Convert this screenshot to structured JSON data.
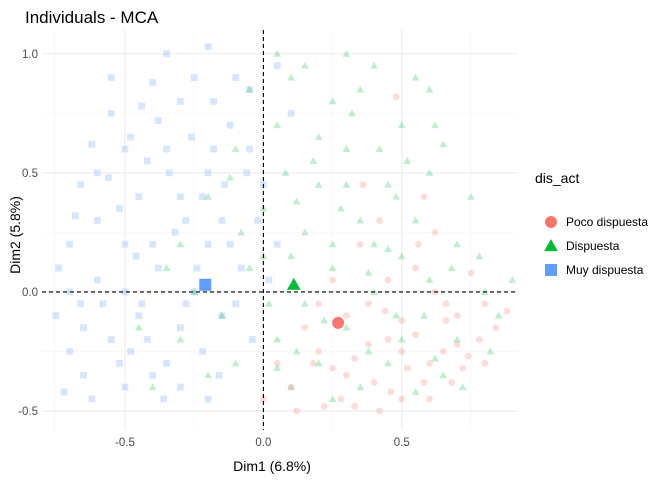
{
  "chart_data": {
    "type": "scatter",
    "title": "Individuals - MCA",
    "xlabel": "Dim1 (6.8%)",
    "ylabel": "Dim2 (5.8%)",
    "xlim": [
      -0.8,
      0.92
    ],
    "ylim": [
      -0.58,
      1.1
    ],
    "x_ticks": [
      -0.5,
      0.0,
      0.5
    ],
    "x_tick_labels": [
      "-0.5",
      "0.0",
      "0.5"
    ],
    "y_ticks": [
      -0.5,
      0.0,
      0.5,
      1.0
    ],
    "y_tick_labels": [
      "-0.5",
      "0.0",
      "0.5",
      "1.0"
    ],
    "reference_lines": {
      "x": 0,
      "y": 0,
      "style": "dashed"
    },
    "grid": true,
    "legend": {
      "title": "dis_act",
      "placement": "right",
      "entries": [
        "Poco dispuesta",
        "Dispuesta",
        "Muy dispuesta"
      ]
    },
    "colors": {
      "Poco dispuesta": "#F8766D",
      "Dispuesta": "#00BA38",
      "Muy dispuesta": "#619CFF"
    },
    "series": [
      {
        "name": "Poco dispuesta",
        "marker": "circle",
        "centroid": [
          0.27,
          -0.13
        ],
        "points": [
          [
            0.45,
            -0.2
          ],
          [
            0.6,
            -0.3
          ],
          [
            0.3,
            -0.35
          ],
          [
            0.7,
            -0.1
          ],
          [
            0.5,
            -0.45
          ],
          [
            0.2,
            -0.25
          ],
          [
            0.38,
            -0.05
          ],
          [
            0.55,
            0.1
          ],
          [
            0.65,
            -0.25
          ],
          [
            0.1,
            -0.4
          ],
          [
            0.8,
            -0.05
          ],
          [
            0.42,
            -0.5
          ],
          [
            0.25,
            0.05
          ],
          [
            0.72,
            -0.32
          ],
          [
            0.58,
            0.4
          ],
          [
            0.48,
            0.82
          ],
          [
            0.33,
            -0.28
          ],
          [
            0.15,
            -0.15
          ],
          [
            0.62,
            0.0
          ],
          [
            0.5,
            -0.12
          ],
          [
            0.78,
            -0.2
          ],
          [
            0.4,
            -0.38
          ],
          [
            0.28,
            -0.45
          ],
          [
            0.68,
            -0.38
          ],
          [
            0.88,
            -0.08
          ],
          [
            0.05,
            -0.3
          ],
          [
            0.35,
            0.2
          ],
          [
            0.52,
            -0.32
          ],
          [
            0.45,
            0.05
          ],
          [
            0.22,
            -0.48
          ],
          [
            0.6,
            -0.45
          ],
          [
            0.75,
            0.08
          ],
          [
            0.38,
            -0.22
          ],
          [
            0.3,
            -0.1
          ],
          [
            0.55,
            -0.18
          ],
          [
            0.12,
            -0.5
          ],
          [
            0.66,
            -0.12
          ],
          [
            0.46,
            -0.42
          ],
          [
            0.8,
            -0.3
          ],
          [
            0.2,
            -0.05
          ],
          [
            0.56,
            0.2
          ],
          [
            0.42,
            0.3
          ],
          [
            0.62,
            0.25
          ],
          [
            0.36,
            0.45
          ],
          [
            0.7,
            -0.22
          ],
          [
            0.25,
            -0.32
          ],
          [
            0.5,
            -0.25
          ],
          [
            0.84,
            -0.15
          ],
          [
            0.0,
            -0.45
          ],
          [
            0.58,
            -0.38
          ],
          [
            0.44,
            -0.08
          ],
          [
            0.33,
            -0.48
          ],
          [
            0.66,
            -0.05
          ],
          [
            0.18,
            -0.3
          ],
          [
            0.74,
            -0.27
          ]
        ]
      },
      {
        "name": "Dispuesta",
        "marker": "triangle",
        "centroid": [
          0.11,
          0.03
        ],
        "points": [
          [
            0.1,
            0.9
          ],
          [
            0.25,
            0.8
          ],
          [
            0.4,
            0.95
          ],
          [
            0.05,
            0.7
          ],
          [
            0.3,
            0.6
          ],
          [
            0.5,
            0.7
          ],
          [
            0.2,
            0.45
          ],
          [
            0.45,
            0.45
          ],
          [
            0.6,
            0.5
          ],
          [
            -0.1,
            0.6
          ],
          [
            0.35,
            0.3
          ],
          [
            0.15,
            0.25
          ],
          [
            0.55,
            0.3
          ],
          [
            0.7,
            0.2
          ],
          [
            0.0,
            0.35
          ],
          [
            -0.2,
            0.4
          ],
          [
            0.25,
            0.1
          ],
          [
            0.4,
            0.0
          ],
          [
            0.6,
            0.05
          ],
          [
            0.8,
            0.0
          ],
          [
            -0.05,
            0.1
          ],
          [
            0.15,
            -0.05
          ],
          [
            0.3,
            -0.15
          ],
          [
            0.5,
            -0.2
          ],
          [
            0.7,
            -0.2
          ],
          [
            -0.25,
            0.0
          ],
          [
            0.05,
            -0.2
          ],
          [
            0.2,
            -0.3
          ],
          [
            0.45,
            -0.3
          ],
          [
            0.65,
            -0.35
          ],
          [
            -0.1,
            -0.3
          ],
          [
            -0.3,
            -0.2
          ],
          [
            0.1,
            -0.4
          ],
          [
            0.35,
            -0.4
          ],
          [
            -0.4,
            -0.4
          ],
          [
            0.3,
            1.0
          ],
          [
            0.55,
            0.9
          ],
          [
            0.2,
            0.65
          ],
          [
            0.62,
            0.7
          ],
          [
            0.08,
            0.5
          ],
          [
            -0.05,
            0.85
          ],
          [
            0.42,
            0.6
          ],
          [
            0.75,
            0.4
          ],
          [
            -0.3,
            0.2
          ],
          [
            0.5,
            0.15
          ],
          [
            0.85,
            -0.1
          ],
          [
            0.58,
            -0.1
          ],
          [
            0.1,
            0.15
          ],
          [
            -0.15,
            -0.1
          ],
          [
            0.28,
            0.35
          ],
          [
            0.02,
            -0.05
          ],
          [
            0.38,
            -0.25
          ],
          [
            0.48,
            0.4
          ],
          [
            0.68,
            0.1
          ],
          [
            -0.2,
            -0.35
          ],
          [
            0.18,
            0.55
          ],
          [
            0.32,
            0.75
          ],
          [
            0.52,
            0.55
          ],
          [
            -0.08,
            0.25
          ],
          [
            0.22,
            -0.12
          ],
          [
            0.62,
            -0.28
          ],
          [
            0.4,
            0.2
          ],
          [
            0.12,
            0.38
          ],
          [
            0.78,
            0.15
          ],
          [
            -0.35,
            0.1
          ],
          [
            0.05,
            -0.32
          ],
          [
            0.25,
            -0.45
          ],
          [
            0.55,
            -0.42
          ],
          [
            0.72,
            -0.4
          ],
          [
            0.9,
            0.05
          ],
          [
            0.15,
            0.95
          ],
          [
            0.45,
            0.18
          ],
          [
            -0.12,
            0.48
          ],
          [
            0.35,
            0.85
          ],
          [
            0.6,
            0.85
          ],
          [
            0.05,
            1.0
          ],
          [
            0.25,
            0.2
          ],
          [
            0.48,
            -0.1
          ],
          [
            0.82,
            -0.25
          ],
          [
            -0.45,
            -0.15
          ],
          [
            0.0,
            0.15
          ],
          [
            0.3,
            0.45
          ],
          [
            0.65,
            0.62
          ],
          [
            0.12,
            -0.25
          ],
          [
            0.38,
            0.08
          ]
        ]
      },
      {
        "name": "Muy dispuesta",
        "marker": "square",
        "centroid": [
          -0.21,
          0.03
        ],
        "points": [
          [
            -0.5,
            0.6
          ],
          [
            -0.3,
            0.8
          ],
          [
            -0.6,
            0.3
          ],
          [
            -0.7,
            0.0
          ],
          [
            -0.4,
            0.2
          ],
          [
            -0.2,
            0.5
          ],
          [
            -0.1,
            0.9
          ],
          [
            -0.55,
            -0.2
          ],
          [
            -0.35,
            -0.3
          ],
          [
            -0.65,
            -0.35
          ],
          [
            -0.45,
            -0.1
          ],
          [
            -0.25,
            0.0
          ],
          [
            -0.15,
            0.3
          ],
          [
            -0.05,
            0.6
          ],
          [
            -0.35,
            0.6
          ],
          [
            -0.6,
            0.5
          ],
          [
            -0.5,
            0.0
          ],
          [
            -0.7,
            0.2
          ],
          [
            -0.3,
            -0.15
          ],
          [
            -0.15,
            -0.1
          ],
          [
            -0.25,
            0.9
          ],
          [
            -0.45,
            0.4
          ],
          [
            -0.55,
            0.75
          ],
          [
            -0.2,
            0.2
          ],
          [
            -0.4,
            -0.35
          ],
          [
            -0.65,
            -0.15
          ],
          [
            -0.35,
            1.0
          ],
          [
            -0.12,
            0.7
          ],
          [
            -0.48,
            -0.25
          ],
          [
            -0.72,
            -0.42
          ],
          [
            -0.3,
            0.4
          ],
          [
            -0.6,
            0.05
          ],
          [
            -0.42,
            0.55
          ],
          [
            -0.08,
            0.1
          ],
          [
            -0.22,
            -0.25
          ],
          [
            -0.52,
            0.35
          ],
          [
            -0.18,
            0.8
          ],
          [
            -0.38,
            0.1
          ],
          [
            -0.68,
            0.32
          ],
          [
            -0.28,
            -0.05
          ],
          [
            -0.58,
            -0.05
          ],
          [
            -0.44,
            0.78
          ],
          [
            -0.14,
            0.45
          ],
          [
            -0.32,
            0.25
          ],
          [
            -0.62,
            0.62
          ],
          [
            -0.02,
            0.3
          ],
          [
            -0.26,
            0.65
          ],
          [
            -0.5,
            -0.4
          ],
          [
            -0.75,
            -0.1
          ],
          [
            -0.36,
            -0.45
          ],
          [
            -0.16,
            -0.35
          ],
          [
            -0.46,
            0.15
          ],
          [
            -0.66,
            0.45
          ],
          [
            -0.2,
            1.03
          ],
          [
            0.05,
            0.95
          ],
          [
            -0.04,
            -0.2
          ],
          [
            -0.55,
            0.9
          ],
          [
            -0.4,
            0.88
          ],
          [
            -0.24,
            0.1
          ],
          [
            -0.1,
            -0.05
          ],
          [
            0.0,
            0.45
          ],
          [
            -0.7,
            -0.25
          ],
          [
            -0.5,
            0.2
          ],
          [
            -0.3,
            -0.4
          ],
          [
            -0.62,
            -0.45
          ],
          [
            -0.12,
            0.2
          ],
          [
            -0.42,
            -0.2
          ],
          [
            -0.18,
            0.6
          ],
          [
            -0.34,
            0.5
          ],
          [
            -0.56,
            0.48
          ],
          [
            0.1,
            0.75
          ],
          [
            0.05,
            0.2
          ],
          [
            -0.48,
            0.65
          ],
          [
            -0.28,
            0.3
          ],
          [
            -0.06,
            0.5
          ],
          [
            -0.66,
            -0.05
          ],
          [
            -0.22,
            0.4
          ],
          [
            -0.44,
            -0.05
          ],
          [
            -0.74,
            0.1
          ],
          [
            -0.38,
            0.72
          ],
          [
            -0.2,
            -0.45
          ],
          [
            -0.05,
            0.85
          ],
          [
            0.02,
            0.05
          ],
          [
            -0.52,
            -0.3
          ]
        ]
      }
    ]
  }
}
